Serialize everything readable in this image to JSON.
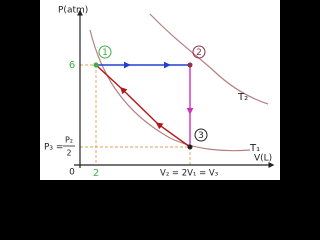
{
  "axes": {
    "y_label": "P(atm)",
    "x_label": "V(L)",
    "origin": "0",
    "y_tick": "6",
    "x_tick": "2"
  },
  "states": [
    {
      "label": "1"
    },
    {
      "label": "2"
    },
    {
      "label": "3"
    }
  ],
  "isotherms": [
    {
      "label": "T₂"
    },
    {
      "label": "T₁"
    }
  ],
  "annotations": {
    "p3": "P₃ =",
    "p3_numerator": "P₂",
    "p3_denominator": "2",
    "v2": "V₂ = 2V₁ = V₃"
  }
}
